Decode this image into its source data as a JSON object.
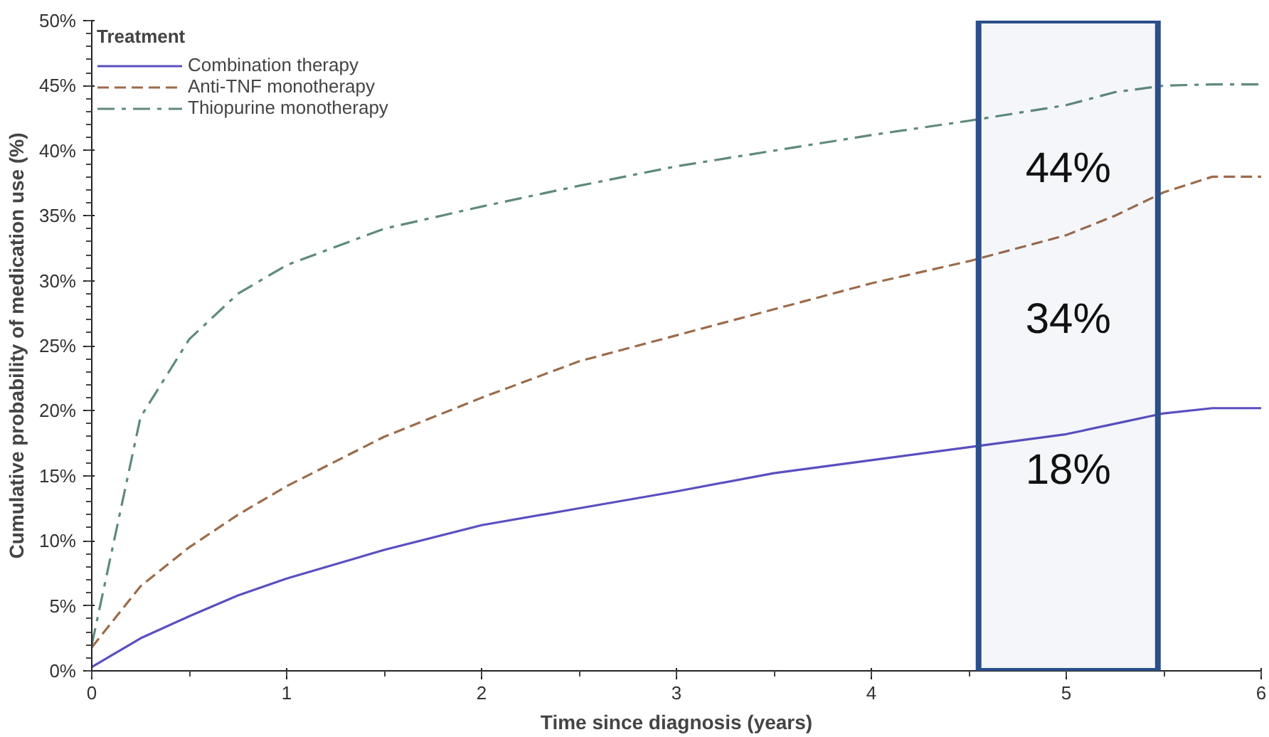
{
  "chart_data": {
    "type": "line",
    "xlabel": "Time since diagnosis (years)",
    "ylabel": "Cumulative probability of medication use (%)",
    "legend_title": "Treatment",
    "legend": "top left",
    "grid": false,
    "marker": "none",
    "xlim": [
      0,
      6
    ],
    "ylim": [
      0,
      50
    ],
    "xticks": [
      0,
      1,
      2,
      3,
      4,
      5,
      6
    ],
    "yticks": [
      {
        "value": 0,
        "label": "0%"
      },
      {
        "value": 5,
        "label": "5%"
      },
      {
        "value": 10,
        "label": "10%"
      },
      {
        "value": 15,
        "label": "15%"
      },
      {
        "value": 20,
        "label": "20%"
      },
      {
        "value": 25,
        "label": "25%"
      },
      {
        "value": 30,
        "label": "30%"
      },
      {
        "value": 35,
        "label": "35%"
      },
      {
        "value": 40,
        "label": "40%"
      },
      {
        "value": 45,
        "label": "45%"
      },
      {
        "value": 50,
        "label": "50%"
      }
    ],
    "x": [
      0,
      0.25,
      0.5,
      0.75,
      1,
      1.5,
      2,
      2.5,
      3,
      3.5,
      4,
      4.5,
      5,
      5.25,
      5.5,
      5.75,
      6
    ],
    "series": [
      {
        "name": "Combination therapy",
        "color": "#5a4fc0",
        "line_style": "solid",
        "values": [
          0.3,
          2.5,
          4.2,
          5.8,
          7.1,
          9.3,
          11.2,
          12.5,
          13.8,
          15.2,
          16.2,
          17.2,
          18.2,
          19.0,
          19.8,
          20.2,
          20.2
        ]
      },
      {
        "name": "Anti-TNF monotherapy",
        "color": "#9c6b4a",
        "line_style": "dashed",
        "values": [
          1.8,
          6.5,
          9.5,
          12.0,
          14.2,
          18.0,
          21.0,
          23.8,
          25.8,
          27.8,
          29.8,
          31.5,
          33.5,
          35.0,
          36.8,
          38.0,
          38.0
        ]
      },
      {
        "name": "Thiopurine monotherapy",
        "color": "#5f8a7a",
        "line_style": "dashdot",
        "values": [
          2.0,
          19.5,
          25.5,
          29.0,
          31.2,
          34.0,
          35.7,
          37.3,
          38.8,
          40.0,
          41.2,
          42.3,
          43.5,
          44.5,
          45.0,
          45.1,
          45.1
        ]
      }
    ],
    "bands": [
      {
        "axis": "x",
        "from": 4.55,
        "to": 5.47,
        "color": "#2b4f8a"
      }
    ],
    "annotations": [
      "44%",
      "34%",
      "18%"
    ]
  }
}
